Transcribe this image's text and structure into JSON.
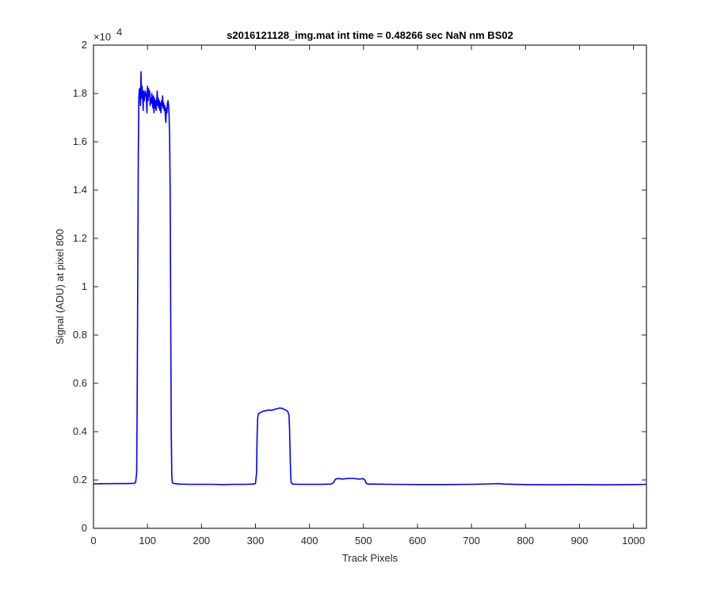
{
  "chart_data": {
    "type": "line",
    "title": "s2016121128_img.mat int time = 0.48266 sec  NaN nm BS02",
    "xlabel": "Track Pixels",
    "ylabel": "Signal (ADU) at pixel 800",
    "xlim": [
      0,
      1024
    ],
    "ylim": [
      0,
      20000
    ],
    "xticks": [
      0,
      100,
      200,
      300,
      400,
      500,
      600,
      700,
      800,
      900,
      1000
    ],
    "xtick_labels": [
      "0",
      "100",
      "200",
      "300",
      "400",
      "500",
      "600",
      "700",
      "800",
      "900",
      "1000"
    ],
    "yticks": [
      0,
      2000,
      4000,
      6000,
      8000,
      10000,
      12000,
      14000,
      16000,
      18000,
      20000
    ],
    "ytick_labels": [
      "0",
      "0.2",
      "0.4",
      "0.6",
      "0.8",
      "1",
      "1.2",
      "1.4",
      "1.6",
      "1.8",
      "2"
    ],
    "y_exponent_label": "×10",
    "y_exponent_power": "4",
    "grid": false,
    "series": [
      {
        "color": "#0000ff",
        "x": [
          0,
          20,
          40,
          60,
          75,
          78,
          80,
          81,
          82,
          83,
          84,
          85,
          86,
          87,
          88,
          89,
          90,
          91,
          92,
          93,
          94,
          95,
          96,
          97,
          98,
          99,
          100,
          101,
          102,
          103,
          104,
          105,
          106,
          107,
          108,
          109,
          110,
          111,
          112,
          113,
          114,
          115,
          116,
          117,
          118,
          119,
          120,
          121,
          122,
          123,
          124,
          125,
          126,
          127,
          128,
          129,
          130,
          131,
          132,
          133,
          134,
          135,
          136,
          137,
          138,
          139,
          140,
          141,
          142,
          143,
          144,
          145,
          146,
          148,
          150,
          160,
          180,
          200,
          220,
          240,
          260,
          280,
          295,
          300,
          302,
          303,
          304,
          305,
          306,
          310,
          315,
          320,
          325,
          330,
          335,
          340,
          345,
          350,
          355,
          358,
          360,
          362,
          363,
          364,
          365,
          366,
          368,
          370,
          380,
          400,
          420,
          440,
          445,
          447,
          448,
          450,
          455,
          460,
          470,
          480,
          490,
          500,
          503,
          505,
          507,
          510,
          520,
          550,
          600,
          650,
          700,
          740,
          750,
          760,
          800,
          850,
          900,
          950,
          1000,
          1024
        ],
        "y": [
          1840,
          1845,
          1850,
          1850,
          1860,
          1900,
          2300,
          5500,
          10500,
          15500,
          17800,
          18200,
          18000,
          17500,
          18900,
          17800,
          18300,
          17900,
          17300,
          18100,
          17700,
          17900,
          18100,
          18000,
          17800,
          17200,
          18300,
          17700,
          18200,
          17900,
          18100,
          17500,
          17800,
          17600,
          18000,
          17700,
          17400,
          17900,
          17200,
          17800,
          17400,
          17700,
          17300,
          17600,
          18100,
          17500,
          17800,
          17400,
          17700,
          17300,
          17600,
          17200,
          17700,
          17500,
          17900,
          17400,
          17600,
          17300,
          17500,
          17100,
          16800,
          17400,
          17200,
          17600,
          17700,
          17500,
          17100,
          16200,
          14000,
          9000,
          4000,
          2200,
          1900,
          1860,
          1850,
          1830,
          1820,
          1820,
          1820,
          1810,
          1820,
          1820,
          1830,
          1850,
          2300,
          3800,
          4550,
          4700,
          4750,
          4800,
          4850,
          4870,
          4900,
          4880,
          4920,
          4950,
          4980,
          4960,
          4900,
          4870,
          4820,
          4700,
          4200,
          3200,
          2300,
          1900,
          1840,
          1830,
          1820,
          1820,
          1820,
          1830,
          1900,
          2000,
          2030,
          2050,
          2060,
          2040,
          2060,
          2070,
          2040,
          2050,
          1980,
          1860,
          1840,
          1830,
          1830,
          1820,
          1810,
          1810,
          1820,
          1840,
          1850,
          1830,
          1810,
          1800,
          1810,
          1800,
          1810,
          1820
        ]
      }
    ]
  }
}
